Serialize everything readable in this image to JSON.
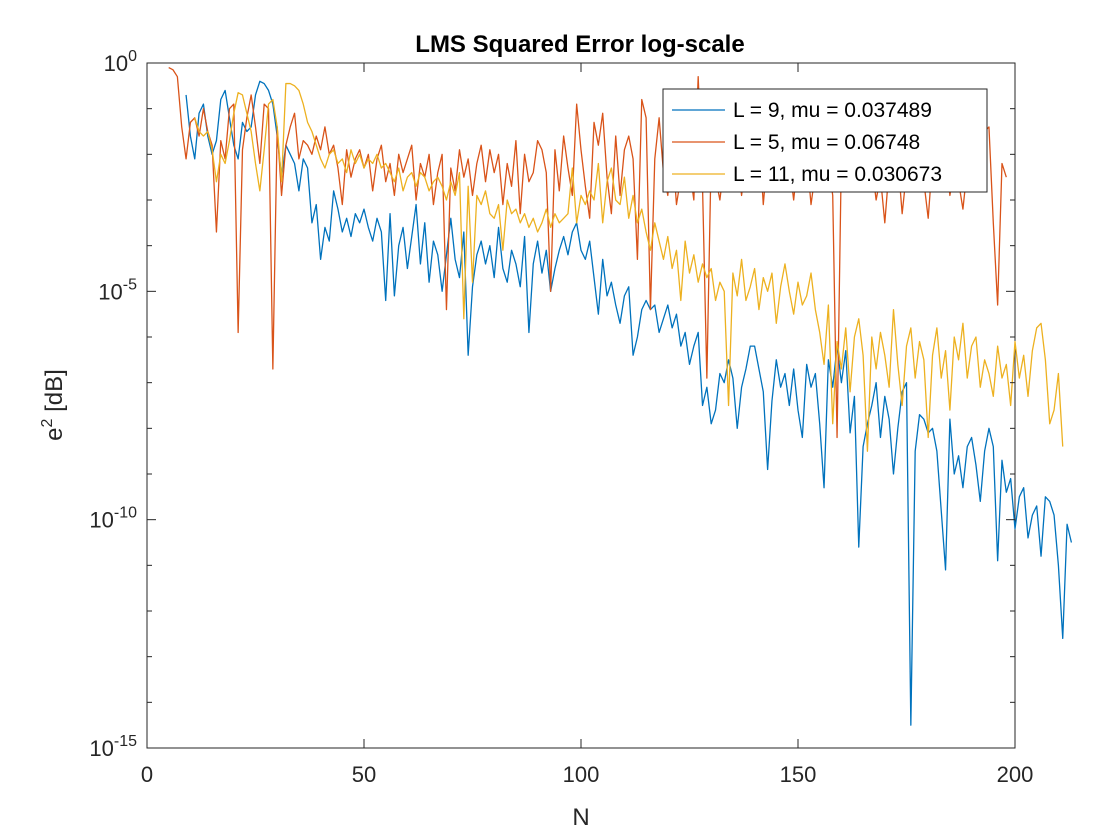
{
  "chart_data": {
    "type": "line",
    "title": "LMS Squared Error log-scale",
    "xlabel": "N",
    "ylabel": {
      "base": "e",
      "sup": "2",
      "rest": " [dB]"
    },
    "xlim": [
      0,
      200
    ],
    "ylim": [
      1e-15,
      1
    ],
    "yscale": "log",
    "grid": false,
    "legend_position": "top-right",
    "x_ticks": [
      {
        "value": 0,
        "label": "0"
      },
      {
        "value": 50,
        "label": "50"
      },
      {
        "value": 100,
        "label": "100"
      },
      {
        "value": 150,
        "label": "150"
      },
      {
        "value": 200,
        "label": "200"
      }
    ],
    "y_ticks": [
      {
        "exp": 0,
        "base": "10",
        "sup": "0"
      },
      {
        "exp": -5,
        "base": "10",
        "sup": "-5"
      },
      {
        "exp": -10,
        "base": "10",
        "sup": "-10"
      },
      {
        "exp": -15,
        "base": "10",
        "sup": "-15"
      }
    ],
    "series": [
      {
        "name": "L = 9, mu = 0.037489",
        "color": "#0072BD",
        "x_start": 9,
        "log10_values": [
          -0.7,
          -1.6,
          -2.1,
          -1.1,
          -0.9,
          -1.6,
          -2.0,
          -1.7,
          -0.8,
          -0.6,
          -1.2,
          -1.8,
          -2.1,
          -1.3,
          -1.5,
          -1.4,
          -0.7,
          -0.4,
          -0.45,
          -0.6,
          -0.9,
          -1.6,
          -2.5,
          -1.8,
          -2.0,
          -2.2,
          -2.8,
          -2.1,
          -2.3,
          -3.5,
          -3.1,
          -4.3,
          -3.6,
          -3.9,
          -2.8,
          -3.2,
          -3.7,
          -3.4,
          -3.8,
          -3.3,
          -3.5,
          -3.2,
          -3.6,
          -3.9,
          -3.4,
          -3.7,
          -5.2,
          -3.3,
          -5.1,
          -4.0,
          -3.6,
          -4.5,
          -3.8,
          -3.1,
          -4.4,
          -3.5,
          -4.8,
          -3.9,
          -4.2,
          -5.0,
          -4.2,
          -3.4,
          -4.3,
          -4.7,
          -3.7,
          -6.4,
          -4.9,
          -4.2,
          -3.9,
          -4.4,
          -4.0,
          -4.7,
          -3.6,
          -4.5,
          -4.8,
          -4.1,
          -4.4,
          -4.9,
          -3.8,
          -5.9,
          -4.4,
          -3.9,
          -4.6,
          -4.1,
          -5.0,
          -4.5,
          -4.1,
          -3.8,
          -4.2,
          -3.7,
          -3.5,
          -4.1,
          -4.3,
          -3.9,
          -4.7,
          -5.5,
          -4.3,
          -5.1,
          -4.8,
          -5.3,
          -5.7,
          -5.1,
          -4.9,
          -6.4,
          -6.0,
          -5.4,
          -5.2,
          -5.4,
          -5.3,
          -5.9,
          -5.6,
          -5.3,
          -5.8,
          -5.5,
          -6.2,
          -5.9,
          -6.6,
          -6.2,
          -5.9,
          -7.5,
          -7.1,
          -7.9,
          -7.6,
          -6.8,
          -7.0,
          -6.5,
          -6.9,
          -8.0,
          -7.1,
          -6.7,
          -6.2,
          -6.2,
          -6.7,
          -7.2,
          -8.9,
          -7.4,
          -6.5,
          -7.1,
          -6.8,
          -7.5,
          -6.7,
          -7.6,
          -8.2,
          -6.6,
          -7.1,
          -6.8,
          -7.9,
          -9.3,
          -6.5,
          -7.1,
          -6.2,
          -7.0,
          -6.3,
          -8.1,
          -7.3,
          -10.6,
          -8.4,
          -7.9,
          -7.5,
          -7.0,
          -8.2,
          -7.3,
          -7.8,
          -9.0,
          -8.0,
          -7.2,
          -7.0,
          -14.5,
          -8.5,
          -7.7,
          -7.8,
          -8.1,
          -8.0,
          -8.5,
          -9.8,
          -11.1,
          -7.8,
          -9.0,
          -8.6,
          -9.3,
          -8.4,
          -8.2,
          -8.8,
          -9.6,
          -8.5,
          -8.0,
          -8.4,
          -10.9,
          -8.7,
          -9.4,
          -9.1,
          -10.2,
          -9.5,
          -9.3,
          -10.4,
          -9.9,
          -9.7,
          -10.8,
          -9.5,
          -9.6,
          -9.9,
          -11.0,
          -12.6,
          -10.1,
          -10.5
        ]
      },
      {
        "name": "L = 5, mu = 0.06748",
        "color": "#D95319",
        "x_start": 5,
        "log10_values": [
          -0.1,
          -0.15,
          -0.3,
          -1.4,
          -2.1,
          -1.3,
          -1.2,
          -1.6,
          -1.0,
          -1.5,
          -1.8,
          -3.7,
          -1.7,
          -2.1,
          -1.0,
          -0.9,
          -5.9,
          -1.9,
          -1.2,
          -0.7,
          -1.4,
          -2.2,
          -0.9,
          -1.0,
          -6.7,
          -1.4,
          -2.9,
          -1.8,
          -1.4,
          -1.1,
          -2.1,
          -1.7,
          -1.8,
          -2.0,
          -1.6,
          -1.9,
          -1.4,
          -2.0,
          -1.8,
          -2.3,
          -3.1,
          -1.9,
          -2.5,
          -2.1,
          -1.9,
          -2.3,
          -2.0,
          -2.8,
          -2.1,
          -1.8,
          -2.6,
          -2.2,
          -2.9,
          -2.0,
          -2.4,
          -2.1,
          -1.8,
          -3.0,
          -2.2,
          -2.5,
          -2.0,
          -3.1,
          -2.4,
          -2.0,
          -5.4,
          -2.3,
          -2.8,
          -1.9,
          -2.5,
          -2.1,
          -2.9,
          -2.2,
          -1.8,
          -2.6,
          -1.9,
          -2.4,
          -2.0,
          -3.1,
          -2.2,
          -2.7,
          -1.7,
          -3.3,
          -2.0,
          -2.6,
          -2.4,
          -1.7,
          -1.9,
          -2.4,
          -5.0,
          -1.9,
          -2.8,
          -1.6,
          -2.3,
          -2.9,
          -0.9,
          -1.9,
          -2.7,
          -3.4,
          -1.3,
          -1.8,
          -1.1,
          -2.5,
          -3.3,
          -1.6,
          -2.9,
          -1.9,
          -1.6,
          -2.1,
          -4.3,
          -0.8,
          -1.2,
          -5.4,
          -2.1,
          -1.2,
          -2.4,
          -2.9,
          -1.8,
          -3.1,
          -2.5,
          -1.6,
          -2.3,
          -3.0,
          -0.3,
          -2.7,
          -6.9,
          -2.0,
          -2.5,
          -3.0,
          -2.2,
          -1.7,
          -2.6,
          -2.0,
          -2.9,
          -2.1,
          -2.7,
          -2.4,
          -1.5,
          -3.1,
          -2.0,
          -2.6,
          -2.3,
          -1.9,
          -2.7,
          -2.2,
          -3.0,
          -2.1,
          -2.5,
          -2.0,
          -3.1,
          -2.4,
          -2.0,
          -2.7,
          -2.2,
          -2.9,
          -8.2,
          -2.0,
          -2.5,
          -2.1,
          -1.7,
          -2.4,
          -2.0,
          -2.8,
          -2.2,
          -3.0,
          -2.5,
          -3.5,
          -2.3,
          -2.6,
          -2.1,
          -3.3,
          -2.4,
          -2.8,
          -2.2,
          -2.5,
          -2.6,
          -3.4,
          -2.1,
          -2.7,
          -2.4,
          -2.0,
          -2.9,
          -2.3,
          -2.6,
          -3.2,
          -2.3,
          -2.7,
          -2.2,
          -2.0,
          -1.5,
          -1.4,
          -3.5,
          -5.3,
          -2.2,
          -2.5
        ]
      },
      {
        "name": "L = 11, mu = 0.030673",
        "color": "#EDB120",
        "x_start": 11,
        "log10_values": [
          -1.2,
          -1.5,
          -1.6,
          -1.5,
          -1.9,
          -2.6,
          -2.0,
          -2.2,
          -1.7,
          -1.1,
          -0.65,
          -0.7,
          -1.1,
          -1.5,
          -2.2,
          -2.8,
          -1.9,
          -0.9,
          -0.8,
          -1.4,
          -2.6,
          -0.45,
          -0.45,
          -0.5,
          -0.6,
          -0.9,
          -1.3,
          -1.5,
          -1.8,
          -2.1,
          -2.3,
          -2.0,
          -1.9,
          -2.2,
          -2.1,
          -2.4,
          -1.9,
          -2.2,
          -2.0,
          -2.3,
          -2.1,
          -2.2,
          -2.0,
          -2.3,
          -2.2,
          -2.4,
          -2.6,
          -2.3,
          -2.8,
          -2.5,
          -2.4,
          -2.7,
          -2.4,
          -2.5,
          -2.8,
          -2.6,
          -2.5,
          -2.7,
          -3.0,
          -2.6,
          -2.9,
          -2.4,
          -5.6,
          -2.7,
          -4.8,
          -2.9,
          -3.1,
          -2.8,
          -3.3,
          -3.4,
          -3.1,
          -4.1,
          -3.0,
          -3.3,
          -3.2,
          -3.5,
          -3.3,
          -3.6,
          -3.4,
          -3.7,
          -3.5,
          -3.2,
          -3.6,
          -3.3,
          -3.5,
          -3.4,
          -3.3,
          -2.3,
          -3.5,
          -2.9,
          -3.1,
          -2.8,
          -3.0,
          -2.2,
          -3.5,
          -2.6,
          -2.3,
          -3.0,
          -3.1,
          -2.5,
          -3.4,
          -2.9,
          -3.5,
          -3.2,
          -3.7,
          -4.1,
          -3.5,
          -3.9,
          -4.3,
          -3.8,
          -4.5,
          -4.1,
          -5.2,
          -3.9,
          -4.6,
          -4.2,
          -4.8,
          -4.4,
          -4.7,
          -4.5,
          -5.2,
          -4.8,
          -5.0,
          -7.5,
          -4.6,
          -5.1,
          -4.3,
          -5.2,
          -4.9,
          -4.5,
          -5.4,
          -4.7,
          -5.0,
          -4.6,
          -5.7,
          -4.9,
          -4.4,
          -5.0,
          -5.5,
          -4.8,
          -5.3,
          -5.1,
          -4.6,
          -5.4,
          -5.9,
          -6.6,
          -5.3,
          -7.9,
          -6.1,
          -6.7,
          -5.8,
          -7.2,
          -6.0,
          -5.6,
          -6.4,
          -8.5,
          -6.0,
          -6.7,
          -5.9,
          -6.4,
          -7.1,
          -5.4,
          -6.6,
          -7.5,
          -6.2,
          -5.8,
          -6.9,
          -6.1,
          -6.5,
          -8.2,
          -6.4,
          -5.8,
          -6.9,
          -6.3,
          -7.6,
          -6.0,
          -6.5,
          -5.7,
          -6.9,
          -6.2,
          -6.0,
          -7.1,
          -6.5,
          -6.8,
          -7.3,
          -6.2,
          -6.9,
          -6.6,
          -7.5,
          -6.1,
          -6.9,
          -6.4,
          -7.3,
          -6.3,
          -5.8,
          -5.7,
          -6.5,
          -7.9,
          -7.6,
          -6.8,
          -8.4
        ]
      }
    ]
  }
}
